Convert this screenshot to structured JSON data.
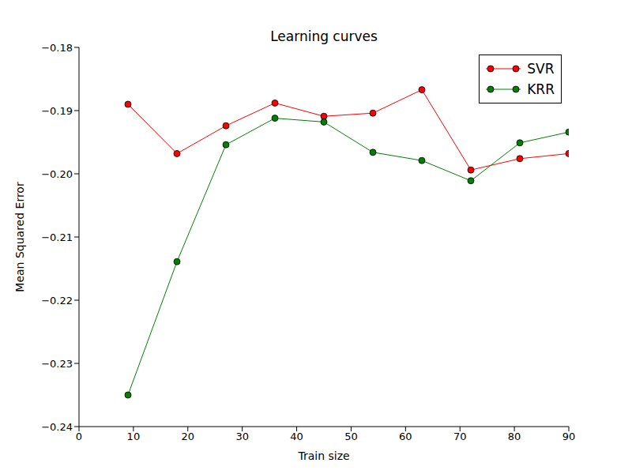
{
  "chart_data": {
    "type": "line",
    "title": "Learning curves",
    "x_label": "Train size",
    "y_label": "Mean Squared Error",
    "x": [
      9,
      18,
      27,
      36,
      45,
      54,
      63,
      72,
      81,
      90
    ],
    "series": [
      {
        "name": "SVR",
        "color": "#ff0000",
        "marker": "circle",
        "values": [
          -0.189,
          -0.1968,
          -0.1924,
          -0.1888,
          -0.1909,
          -0.1904,
          -0.1867,
          -0.1994,
          -0.1976,
          -0.1968
        ]
      },
      {
        "name": "KRR",
        "color": "#008000",
        "marker": "circle",
        "values": [
          -0.235,
          -0.2139,
          -0.1954,
          -0.1912,
          -0.1918,
          -0.1966,
          -0.1979,
          -0.2011,
          -0.1951,
          -0.1934
        ]
      }
    ],
    "xlim": [
      0,
      90
    ],
    "xticks": [
      0,
      10,
      20,
      30,
      40,
      50,
      60,
      70,
      80,
      90
    ],
    "ylim": [
      -0.24,
      -0.18
    ],
    "yticks": [
      {
        "value": -0.24,
        "label": "−0.24"
      },
      {
        "value": -0.23,
        "label": "−0.23"
      },
      {
        "value": -0.22,
        "label": "−0.22"
      },
      {
        "value": -0.21,
        "label": "−0.21"
      },
      {
        "value": -0.2,
        "label": "−0.20"
      },
      {
        "value": -0.19,
        "label": "−0.19"
      },
      {
        "value": -0.18,
        "label": "−0.18"
      }
    ],
    "legend": "upper right",
    "grid": false
  }
}
